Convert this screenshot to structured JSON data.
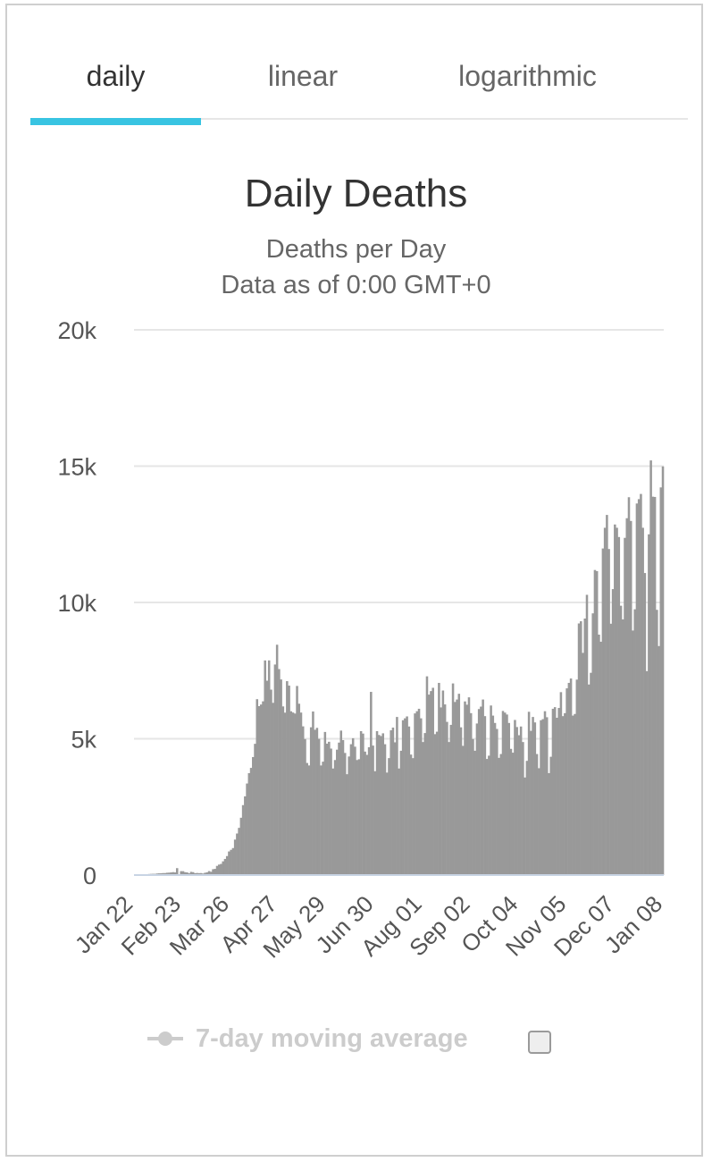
{
  "tabs": [
    {
      "label": "daily",
      "active": true
    },
    {
      "label": "linear",
      "active": false
    },
    {
      "label": "logarithmic",
      "active": false
    }
  ],
  "legend": {
    "label": "7-day moving average",
    "color": "#cccccc",
    "checked": false
  },
  "colors": {
    "accent": "#38c4e2",
    "bar": "#999999",
    "grid": "#e6e6e6"
  },
  "chart_data": {
    "type": "bar",
    "title": "Daily Deaths",
    "subtitle": "Deaths per Day",
    "subtitle2": "Data as of 0:00 GMT+0",
    "xlabel": "",
    "ylabel": "",
    "ylim": [
      0,
      20000
    ],
    "yticks": [
      0,
      5000,
      10000,
      15000,
      20000
    ],
    "ytick_labels": [
      "0",
      "5k",
      "10k",
      "15k",
      "20k"
    ],
    "xtick_labels": [
      "Jan 22",
      "Feb 23",
      "Mar 26",
      "Apr 27",
      "May 29",
      "Jun 30",
      "Aug 01",
      "Sep 02",
      "Oct 04",
      "Nov 05",
      "Dec 07",
      "Jan 08"
    ],
    "first_date": "Jan 22",
    "last_date": "Jan 08",
    "grid": true,
    "legend_position": "bottom",
    "values": [
      17,
      0,
      8,
      16,
      14,
      26,
      26,
      38,
      43,
      46,
      45,
      57,
      64,
      66,
      73,
      73,
      86,
      89,
      97,
      108,
      97,
      254,
      13,
      143,
      142,
      106,
      98,
      65,
      118,
      107,
      70,
      76,
      70,
      73,
      56,
      85,
      101,
      146,
      121,
      215,
      228,
      337,
      385,
      410,
      504,
      592,
      697,
      867,
      927,
      991,
      1302,
      1525,
      1732,
      2103,
      2566,
      2888,
      3359,
      3739,
      3932,
      4330,
      4815,
      6452,
      6197,
      6256,
      6373,
      7873,
      7130,
      7874,
      6802,
      6318,
      7724,
      8449,
      7556,
      7175,
      6187,
      5958,
      7113,
      6950,
      6009,
      5962,
      5925,
      6937,
      6286,
      5961,
      5455,
      4990,
      4112,
      4021,
      5421,
      6000,
      5330,
      5400,
      4996,
      4021,
      4160,
      5250,
      4820,
      4890,
      4640,
      3910,
      4220,
      4600,
      4860,
      5300,
      4950,
      4480,
      3700,
      4350,
      4800,
      5020,
      4710,
      4220,
      4250,
      5280,
      5190,
      4530,
      4410,
      4690,
      6720,
      4750,
      3810,
      5280,
      5140,
      5100,
      5200,
      4800,
      3760,
      4290,
      5310,
      5410,
      4870,
      5800,
      3910,
      4560,
      5680,
      5750,
      5820,
      5450,
      4420,
      4290,
      5930,
      6010,
      6100,
      5750,
      4880,
      5210,
      7290,
      6620,
      6750,
      6870,
      5170,
      5260,
      7050,
      6150,
      6770,
      6260,
      5620,
      4880,
      5510,
      7030,
      6350,
      6440,
      6650,
      5420,
      4740,
      6370,
      6250,
      6520,
      5940,
      4990,
      4560,
      5560,
      6090,
      6180,
      6440,
      5830,
      4260,
      4380,
      6220,
      5850,
      5580,
      5360,
      4300,
      4440,
      6020,
      5960,
      5890,
      5580,
      4630,
      4490,
      5690,
      5430,
      5130,
      5450,
      4880,
      3580,
      4190,
      5990,
      5290,
      5800,
      5600,
      4440,
      3920,
      5680,
      5720,
      6010,
      5790,
      3740,
      4340,
      6100,
      6160,
      5770,
      6130,
      6710,
      5830,
      5940,
      6850,
      7050,
      7210,
      5850,
      5910,
      7170,
      9230,
      9310,
      8150,
      9410,
      10280,
      6990,
      7420,
      9600,
      11190,
      11150,
      8820,
      8560,
      11980,
      12740,
      13210,
      11960,
      9220,
      10490,
      12860,
      12740,
      12400,
      9880,
      9380,
      12370,
      13090,
      13860,
      12990,
      8970,
      9750,
      13630,
      13790,
      13980,
      12740,
      11080,
      7480,
      12500,
      15210,
      13880,
      13870,
      9730,
      8400,
      14220,
      14990
    ]
  }
}
